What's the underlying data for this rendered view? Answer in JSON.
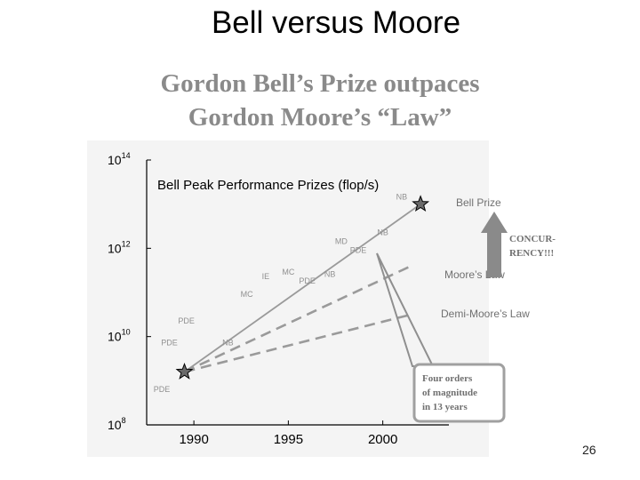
{
  "slide": {
    "title": "Bell versus Moore",
    "headline_line1": "Gordon Bell’s Prize outpaces",
    "headline_line2": "Gordon Moore’s “Law”",
    "page_number": "26"
  },
  "chart_data": {
    "type": "scatter",
    "title": "Bell Peak Performance Prizes (flop/s)",
    "xlabel": "",
    "ylabel": "",
    "xlim": [
      1987.5,
      2003.5
    ],
    "ylim_log10": [
      8,
      14
    ],
    "y_scale": "log",
    "x_ticks": [
      "1990",
      "1995",
      "2000"
    ],
    "x_tick_values": [
      1990,
      1995,
      2000
    ],
    "y_ticks": [
      {
        "base": "10",
        "exp": "14",
        "value": 14
      },
      {
        "base": "10",
        "exp": "12",
        "value": 12
      },
      {
        "base": "10",
        "exp": "10",
        "value": 10
      },
      {
        "base": "10",
        "exp": "8",
        "value": 8
      }
    ],
    "grid": false,
    "points": [
      {
        "label": "PDE",
        "x": 1988.3,
        "y": 8.75
      },
      {
        "label": "PDE",
        "x": 1988.7,
        "y": 9.8
      },
      {
        "label": "PDE",
        "x": 1989.6,
        "y": 10.3
      },
      {
        "label": "NB",
        "x": 1991.8,
        "y": 9.8
      },
      {
        "label": "MC",
        "x": 1992.8,
        "y": 10.9
      },
      {
        "label": "IE",
        "x": 1993.8,
        "y": 11.3
      },
      {
        "label": "MC",
        "x": 1995.0,
        "y": 11.4
      },
      {
        "label": "PDE",
        "x": 1996.0,
        "y": 11.2
      },
      {
        "label": "NB",
        "x": 1997.2,
        "y": 11.35
      },
      {
        "label": "MD",
        "x": 1997.8,
        "y": 12.1
      },
      {
        "label": "PDE",
        "x": 1998.7,
        "y": 11.9
      },
      {
        "label": "NB",
        "x": 2000.0,
        "y": 12.3
      },
      {
        "label": "NB",
        "x": 2001.0,
        "y": 13.1
      }
    ],
    "stars": [
      {
        "x": 1989.5,
        "y": 9.2
      },
      {
        "x": 2002.0,
        "y": 13.0
      }
    ],
    "series": [
      {
        "name": "Bell Prize",
        "style": "solid",
        "x": [
          1989.5,
          2002.0
        ],
        "y": [
          9.2,
          13.0
        ]
      },
      {
        "name": "Moore’s Law",
        "style": "dashed",
        "x": [
          1989.5,
          2001.5
        ],
        "y": [
          9.2,
          11.6
        ]
      },
      {
        "name": "Demi-Moore’s Law",
        "style": "dashed",
        "x": [
          1989.5,
          2001.5
        ],
        "y": [
          9.2,
          10.5
        ]
      }
    ],
    "annotations": {
      "concurrency": "CONCUR-RENCY!!!",
      "concurrency_line1": "CONCUR-",
      "concurrency_line2": "RENCY!!!",
      "callout_line1": "Four orders",
      "callout_line2": "of magnitude",
      "callout_line3": "in 13 years"
    },
    "colors": {
      "lines": "#9a9a9a",
      "labels": "#909090",
      "arrow": "#8a8a8a",
      "callout_border": "#a0a0a0",
      "axis": "#000000",
      "plot_bg": "#f4f4f4"
    }
  }
}
